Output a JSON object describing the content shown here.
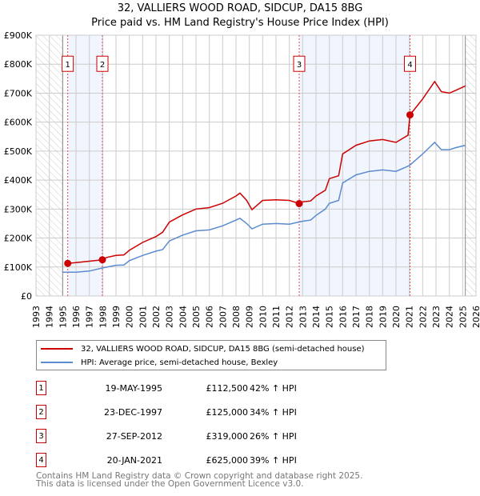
{
  "title": "32, VALLIERS WOOD ROAD, SIDCUP, DA15 8BG",
  "subtitle": "Price paid vs. HM Land Registry's House Price Index (HPI)",
  "chart_data": {
    "type": "line",
    "title": "32, VALLIERS WOOD ROAD, SIDCUP, DA15 8BG",
    "subtitle": "Price paid vs. HM Land Registry's House Price Index (HPI)",
    "xlim": [
      1993,
      2026
    ],
    "ylim": [
      0,
      900000
    ],
    "x_ticks": [
      "1993",
      "1994",
      "1995",
      "1996",
      "1997",
      "1998",
      "1999",
      "2000",
      "2001",
      "2002",
      "2003",
      "2004",
      "2005",
      "2006",
      "2007",
      "2008",
      "2009",
      "2010",
      "2011",
      "2012",
      "2013",
      "2014",
      "2015",
      "2016",
      "2017",
      "2018",
      "2019",
      "2020",
      "2021",
      "2022",
      "2023",
      "2024",
      "2025",
      "2026"
    ],
    "y_ticks": [
      {
        "v": 0,
        "label": "£0"
      },
      {
        "v": 100000,
        "label": "£100K"
      },
      {
        "v": 200000,
        "label": "£200K"
      },
      {
        "v": 300000,
        "label": "£300K"
      },
      {
        "v": 400000,
        "label": "£400K"
      },
      {
        "v": 500000,
        "label": "£500K"
      },
      {
        "v": 600000,
        "label": "£600K"
      },
      {
        "v": 700000,
        "label": "£700K"
      },
      {
        "v": 800000,
        "label": "£800K"
      },
      {
        "v": 900000,
        "label": "£900K"
      }
    ],
    "grid": true,
    "data_range": [
      1995,
      2025.2
    ],
    "shaded_periods": [
      [
        1995.38,
        1997.98
      ],
      [
        2012.74,
        2021.05
      ]
    ],
    "series": [
      {
        "name": "32, VALLIERS WOOD ROAD, SIDCUP, DA15 8BG (semi-detached house)",
        "color": "#cc0000",
        "x": [
          1995.38,
          1996,
          1997,
          1997.98,
          1998.3,
          1999,
          1999.6,
          2000,
          2001,
          2002,
          2002.5,
          2003,
          2004,
          2005,
          2006,
          2007,
          2008,
          2008.3,
          2008.8,
          2009.2,
          2010,
          2011,
          2012,
          2012.74,
          2013,
          2013.6,
          2014,
          2014.7,
          2015,
          2015.7,
          2016,
          2017,
          2018,
          2019,
          2020,
          2020.9,
          2021.05,
          2022,
          2022.9,
          2023.4,
          2024,
          2024.5,
          2025.2
        ],
        "y": [
          112500,
          115000,
          120000,
          125000,
          133000,
          140000,
          142000,
          158000,
          185000,
          205000,
          220000,
          255000,
          280000,
          300000,
          305000,
          320000,
          345000,
          355000,
          330000,
          298000,
          330000,
          332000,
          330000,
          319000,
          325000,
          328000,
          345000,
          365000,
          405000,
          415000,
          490000,
          520000,
          535000,
          540000,
          530000,
          555000,
          625000,
          680000,
          740000,
          705000,
          700000,
          710000,
          725000
        ]
      },
      {
        "name": "HPI: Average price, semi-detached house, Bexley",
        "color": "#5b8bd0",
        "x": [
          1995,
          1996,
          1997,
          1998,
          1999,
          1999.6,
          2000,
          2001,
          2002,
          2002.5,
          2003,
          2004,
          2005,
          2006,
          2007,
          2008,
          2008.3,
          2008.8,
          2009.2,
          2010,
          2011,
          2012,
          2013,
          2013.6,
          2014,
          2014.7,
          2015,
          2015.7,
          2016,
          2017,
          2018,
          2019,
          2020,
          2021,
          2022,
          2022.9,
          2023.4,
          2024,
          2024.5,
          2025.2
        ],
        "y": [
          82000,
          82000,
          86000,
          97000,
          106000,
          107000,
          122000,
          140000,
          155000,
          160000,
          190000,
          210000,
          225000,
          228000,
          242000,
          262000,
          268000,
          250000,
          232000,
          248000,
          250000,
          248000,
          258000,
          262000,
          278000,
          300000,
          320000,
          330000,
          390000,
          418000,
          430000,
          435000,
          430000,
          450000,
          490000,
          530000,
          505000,
          505000,
          512000,
          520000
        ]
      }
    ],
    "sales": [
      {
        "n": "1",
        "x": 1995.38,
        "y": 112500
      },
      {
        "n": "2",
        "x": 1997.98,
        "y": 125000
      },
      {
        "n": "3",
        "x": 2012.74,
        "y": 319000
      },
      {
        "n": "4",
        "x": 2021.05,
        "y": 625000
      }
    ],
    "legend": "below"
  },
  "legend": [
    {
      "label": "32, VALLIERS WOOD ROAD, SIDCUP, DA15 8BG (semi-detached house)",
      "color": "#cc0000"
    },
    {
      "label": "HPI: Average price, semi-detached house, Bexley",
      "color": "#5b8bd0"
    }
  ],
  "table": [
    {
      "n": "1",
      "date": "19-MAY-1995",
      "price": "£112,500",
      "hpi": "42% ↑ HPI"
    },
    {
      "n": "2",
      "date": "23-DEC-1997",
      "price": "£125,000",
      "hpi": "34% ↑ HPI"
    },
    {
      "n": "3",
      "date": "27-SEP-2012",
      "price": "£319,000",
      "hpi": "26% ↑ HPI"
    },
    {
      "n": "4",
      "date": "20-JAN-2021",
      "price": "£625,000",
      "hpi": "39% ↑ HPI"
    }
  ],
  "footer": [
    "Contains HM Land Registry data © Crown copyright and database right 2025.",
    "This data is licensed under the Open Government Licence v3.0."
  ]
}
